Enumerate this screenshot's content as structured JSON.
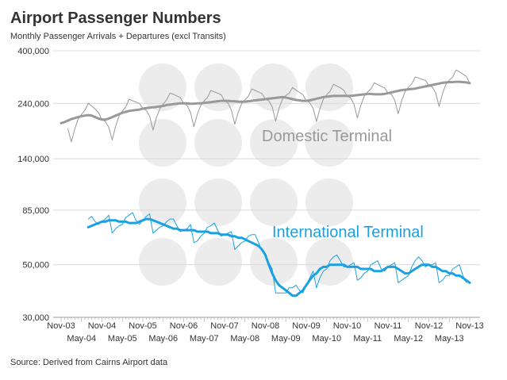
{
  "chart_data": {
    "type": "line",
    "title": "Airport Passenger Numbers",
    "subtitle": "Monthly Passenger Arrivals + Departures (excl Transits)",
    "source": "Source: Derived from Cairns Airport data",
    "log_scale": true,
    "grid": true,
    "ylim": [
      30000,
      400000
    ],
    "yticks": [
      {
        "value": 30000,
        "label": "30,000"
      },
      {
        "value": 50000,
        "label": "50,000"
      },
      {
        "value": 85000,
        "label": "85,000"
      },
      {
        "value": 140000,
        "label": "140,000"
      },
      {
        "value": 240000,
        "label": "240,000"
      },
      {
        "value": 400000,
        "label": "400,000"
      }
    ],
    "categories": [
      "Nov-03",
      null,
      null,
      null,
      null,
      null,
      "May-04",
      null,
      null,
      null,
      null,
      null,
      "Nov-04",
      null,
      null,
      null,
      null,
      null,
      "May-05",
      null,
      null,
      null,
      null,
      null,
      "Nov-05",
      null,
      null,
      null,
      null,
      null,
      "May-06",
      null,
      null,
      null,
      null,
      null,
      "Nov-06",
      null,
      null,
      null,
      null,
      null,
      "May-07",
      null,
      null,
      null,
      null,
      null,
      "Nov-07",
      null,
      null,
      null,
      null,
      null,
      "May-08",
      null,
      null,
      null,
      null,
      null,
      "Nov-08",
      null,
      null,
      null,
      null,
      null,
      "May-09",
      null,
      null,
      null,
      null,
      null,
      "Nov-09",
      null,
      null,
      null,
      null,
      null,
      "May-10",
      null,
      null,
      null,
      null,
      null,
      "Nov-10",
      null,
      null,
      null,
      null,
      null,
      "May-11",
      null,
      null,
      null,
      null,
      null,
      "Nov-11",
      null,
      null,
      null,
      null,
      null,
      "May-12",
      null,
      null,
      null,
      null,
      null,
      "Nov-12",
      null,
      null,
      null,
      null,
      null,
      "May-13",
      null,
      null,
      null,
      null,
      null,
      "Nov-13"
    ],
    "series": [
      {
        "name": "Domestic Terminal",
        "color": "#999999",
        "values": [
          null,
          null,
          187000,
          165000,
          187000,
          206000,
          216000,
          224000,
          240000,
          234000,
          227000,
          219000,
          205000,
          201000,
          190000,
          168000,
          192000,
          212000,
          223000,
          232000,
          250000,
          246000,
          243000,
          240000,
          228000,
          224000,
          212000,
          185000,
          209000,
          228000,
          239000,
          248000,
          265000,
          262000,
          258000,
          254000,
          240000,
          235000,
          220000,
          191000,
          216000,
          235000,
          246000,
          254000,
          272000,
          268000,
          265000,
          261000,
          246000,
          241000,
          225000,
          196000,
          220000,
          239000,
          249000,
          257000,
          276000,
          272000,
          268000,
          264000,
          250000,
          246000,
          232000,
          202000,
          229000,
          250000,
          259000,
          265000,
          280000,
          273000,
          267000,
          261000,
          246000,
          242000,
          229000,
          201000,
          228000,
          250000,
          261000,
          270000,
          289000,
          284000,
          279000,
          273000,
          258000,
          253000,
          238000,
          208000,
          235000,
          257000,
          268000,
          276000,
          293000,
          288000,
          283000,
          279000,
          265000,
          262000,
          247000,
          217000,
          246000,
          269000,
          281000,
          290000,
          310000,
          307000,
          303000,
          300000,
          285000,
          281000,
          266000,
          233000,
          264000,
          288000,
          301000,
          310000,
          332000,
          326000,
          319000,
          312000,
          292000
        ],
        "trend": [
          198000,
          200000,
          203000,
          206000,
          208000,
          210000,
          212000,
          213000,
          214000,
          213000,
          210000,
          207000,
          205000,
          205000,
          207000,
          210000,
          213000,
          216000,
          219000,
          221000,
          223000,
          224000,
          225000,
          226000,
          228000,
          229000,
          230000,
          231000,
          232000,
          233000,
          234000,
          236000,
          237000,
          238000,
          239000,
          240000,
          240000,
          240000,
          239000,
          239000,
          240000,
          240000,
          241000,
          242000,
          243000,
          244000,
          245000,
          246000,
          246000,
          246000,
          245000,
          245000,
          244000,
          244000,
          244000,
          245000,
          246000,
          247000,
          248000,
          249000,
          250000,
          251000,
          252000,
          253000,
          254000,
          255000,
          254000,
          252000,
          250000,
          248000,
          247000,
          246000,
          246000,
          247000,
          249000,
          251000,
          253000,
          255000,
          256000,
          257000,
          258000,
          258000,
          258000,
          258000,
          258000,
          258000,
          259000,
          260000,
          261000,
          262000,
          263000,
          263000,
          262000,
          262000,
          262000,
          263000,
          265000,
          267000,
          269000,
          271000,
          273000,
          274000,
          275000,
          276000,
          277000,
          279000,
          281000,
          283000,
          285000,
          287000,
          289000,
          291000,
          293000,
          294000,
          295000,
          295000,
          296000,
          296000,
          295000,
          294000,
          292000
        ]
      },
      {
        "name": "International Terminal",
        "color": "#1ba1e2",
        "values": [
          null,
          null,
          null,
          null,
          null,
          null,
          null,
          null,
          78000,
          80000,
          76000,
          74000,
          76000,
          78000,
          81000,
          68000,
          71000,
          73000,
          74000,
          79000,
          81000,
          83000,
          77000,
          74000,
          77000,
          80000,
          82000,
          68000,
          70000,
          72000,
          73000,
          76000,
          78000,
          78000,
          73000,
          69000,
          70000,
          71000,
          74000,
          62000,
          63000,
          66000,
          68000,
          72000,
          73000,
          75000,
          70000,
          66000,
          67000,
          68000,
          69000,
          58000,
          60000,
          62000,
          63000,
          66000,
          67000,
          67000,
          62000,
          57000,
          55000,
          51000,
          48000,
          38000,
          38000,
          38000,
          38000,
          40000,
          40000,
          41000,
          39000,
          38000,
          41000,
          44000,
          47000,
          40000,
          44000,
          47000,
          48000,
          52000,
          54000,
          55000,
          52000,
          49000,
          49000,
          50000,
          51000,
          43000,
          44000,
          46000,
          47000,
          50000,
          51000,
          52000,
          48000,
          47000,
          49000,
          50000,
          51000,
          42000,
          43000,
          44000,
          45000,
          49000,
          52000,
          54000,
          52000,
          49000,
          50000,
          50000,
          51000,
          42000,
          43000,
          45000,
          45000,
          48000,
          49000,
          50000,
          45000,
          42000,
          null
        ],
        "trend": [
          null,
          null,
          null,
          null,
          null,
          null,
          null,
          null,
          72000,
          73000,
          74000,
          75000,
          76000,
          76000,
          77000,
          77000,
          77000,
          76000,
          76000,
          76000,
          75000,
          75000,
          75000,
          76000,
          77000,
          78000,
          78000,
          77000,
          76000,
          75000,
          74000,
          73000,
          72000,
          71000,
          71000,
          70000,
          70000,
          70000,
          70000,
          70000,
          69000,
          69000,
          69000,
          69000,
          68000,
          68000,
          68000,
          67000,
          67000,
          67000,
          66000,
          66000,
          65000,
          65000,
          64000,
          63000,
          62000,
          61000,
          60000,
          58000,
          55000,
          50000,
          46000,
          43000,
          41000,
          40000,
          39000,
          38000,
          37000,
          37000,
          38000,
          39000,
          41000,
          43000,
          45000,
          46000,
          48000,
          49000,
          49000,
          50000,
          50000,
          50000,
          50000,
          50000,
          49000,
          49000,
          49000,
          49000,
          48000,
          48000,
          48000,
          48000,
          47000,
          47000,
          47000,
          48000,
          49000,
          49000,
          49000,
          48000,
          47000,
          46000,
          46000,
          47000,
          48000,
          49000,
          50000,
          50000,
          50000,
          49000,
          49000,
          48000,
          47000,
          47000,
          46000,
          46000,
          45000,
          45000,
          44000,
          43000,
          42000
        ]
      }
    ]
  }
}
